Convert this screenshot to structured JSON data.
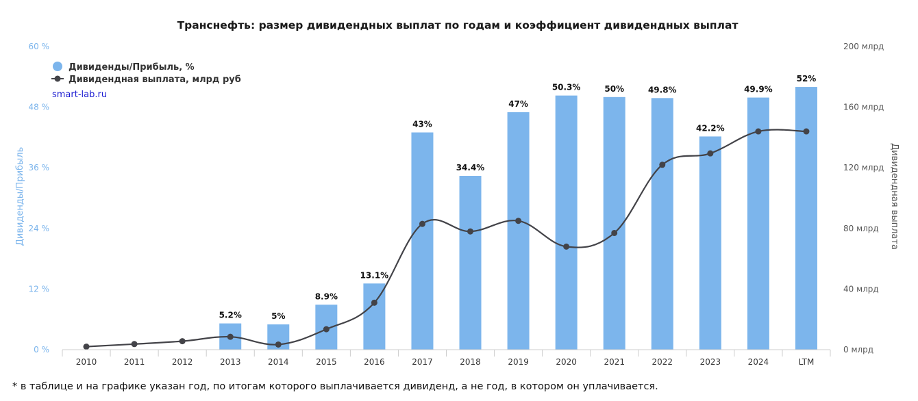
{
  "chart_data": {
    "type": "bar+line",
    "title": "Транснефть: размер дивидендных выплат по годам и коэффициент дивидендных выплат",
    "categories": [
      "2010",
      "2011",
      "2012",
      "2013",
      "2014",
      "2015",
      "2016",
      "2017",
      "2018",
      "2019",
      "2020",
      "2021",
      "2022",
      "2023",
      "2024",
      "LTM"
    ],
    "series": [
      {
        "name": "Дивиденды/Прибыль, %",
        "type": "bar",
        "axis": "left",
        "values": [
          null,
          null,
          null,
          5.2,
          5,
          8.9,
          13.1,
          43,
          34.4,
          47,
          50.3,
          50,
          49.8,
          42.2,
          49.9,
          52
        ],
        "labels": [
          "",
          "",
          "",
          "5.2%",
          "5%",
          "8.9%",
          "13.1%",
          "43%",
          "34.4%",
          "47%",
          "50.3%",
          "50%",
          "49.8%",
          "42.2%",
          "49.9%",
          "52%"
        ],
        "color": "#7cb5ec"
      },
      {
        "name": "Дивидендная выплата, млрд руб",
        "type": "line",
        "axis": "right",
        "values": [
          2,
          3.7,
          5.6,
          8.5,
          3.4,
          13.5,
          31,
          83,
          78,
          85,
          68,
          77,
          122,
          129.5,
          144,
          144
        ],
        "color": "#434348"
      }
    ],
    "y_left": {
      "label": "Дивиденды/Прибыль",
      "min": 0,
      "max": 60,
      "ticks": [
        0,
        12,
        24,
        36,
        48,
        60
      ],
      "tick_labels": [
        "0 %",
        "12 %",
        "24 %",
        "36 %",
        "48 %",
        "60 %"
      ]
    },
    "y_right": {
      "label": "Дивидендная выплата",
      "min": 0,
      "max": 200,
      "ticks": [
        0,
        40,
        80,
        120,
        160,
        200
      ],
      "tick_labels": [
        "0 млрд",
        "40 млрд",
        "80 млрд",
        "120 млрд",
        "160 млрд",
        "200 млрд"
      ]
    },
    "legend": {
      "position": "top-left"
    },
    "grid": false
  },
  "credit": "smart-lab.ru",
  "footnote": "* в таблице и на графике указан год, по итогам которого выплачивается дивиденд, а не год, в котором он уплачивается."
}
